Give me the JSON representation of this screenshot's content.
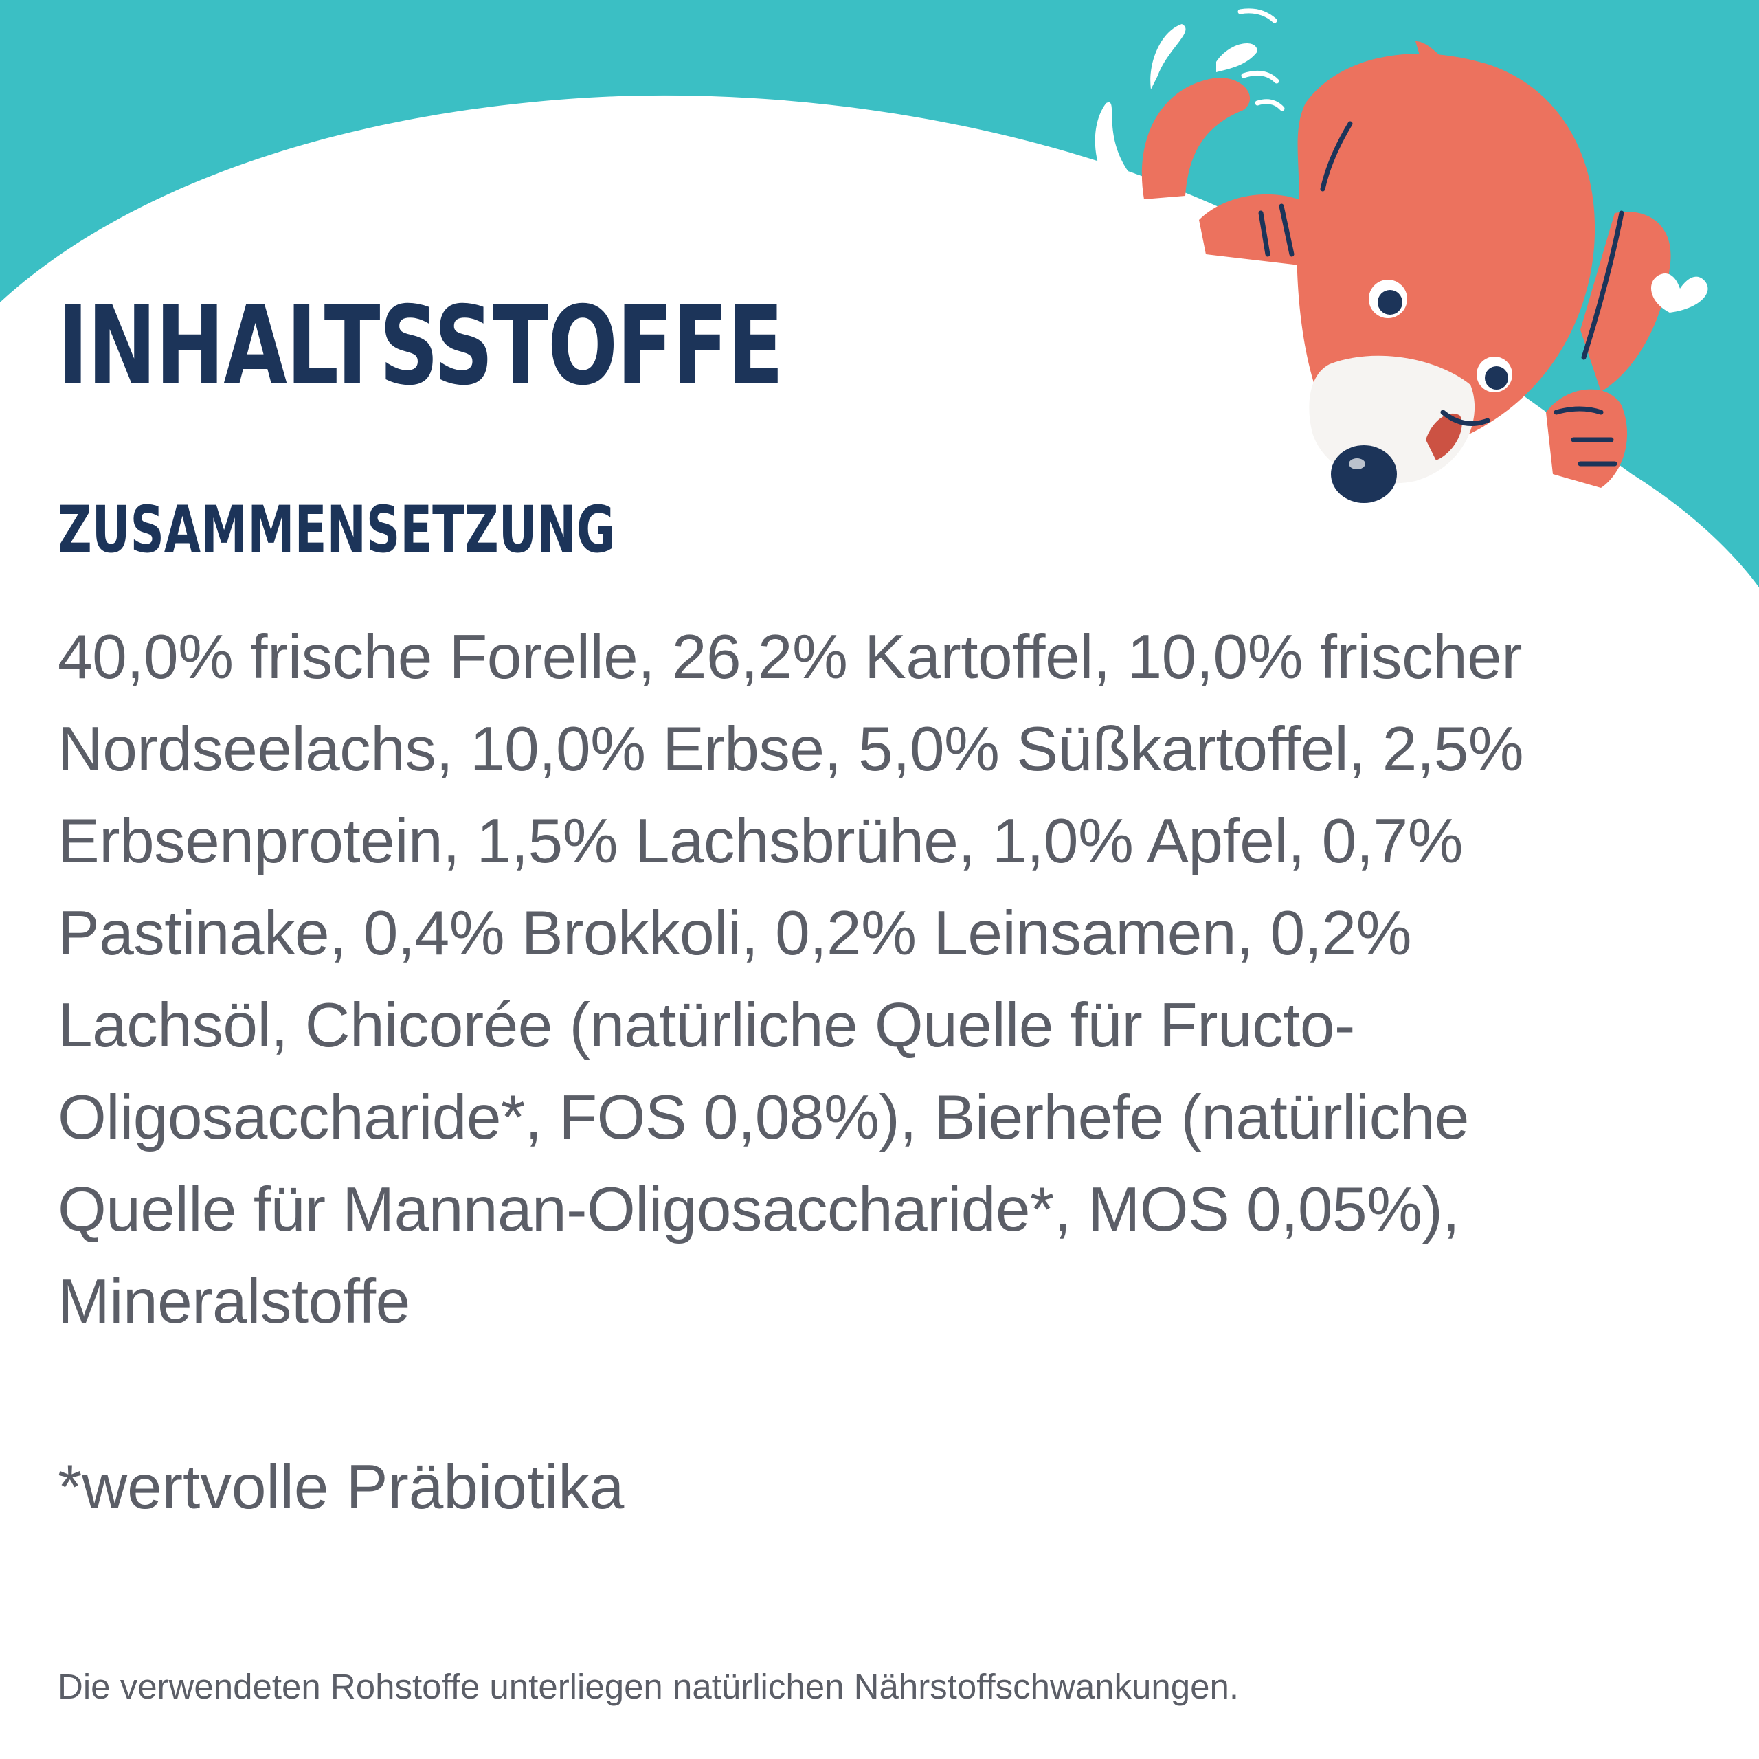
{
  "colors": {
    "teal": "#3BBFC4",
    "navy": "#1C3459",
    "body_text": "#5B5E67",
    "dog_coral": "#EC725E",
    "dog_dark": "#CC5243",
    "background": "#FFFFFF"
  },
  "heading": "INHALTSSTOFFE",
  "subheading": "ZUSAMMENSETZUNG",
  "ingredients_lines": [
    "40,0% frische Forelle, 26,2% Kartoffel, 10,0% frischer",
    "Nordseelachs, 10,0% Erbse, 5,0% Süßkartoffel, 2,5%",
    "Erbsenprotein, 1,5% Lachsbrühe, 1,0% Apfel, 0,7%",
    "Pastinake, 0,4% Brokkoli, 0,2% Leinsamen, 0,2%",
    "Lachsöl, Chicorée (natürliche Quelle für Fructo-",
    "Oligosaccharide*, FOS 0,08%), Bierhefe (natürliche",
    "Quelle für Mannan-Oligosaccharide*, MOS 0,05%),",
    "Mineralstoffe"
  ],
  "footnote": "*wertvolle Präbiotika",
  "disclaimer": "Die verwendeten Rohstoffe unterliegen natürlichen Nährstoffschwankungen.",
  "illustration": {
    "name": "dog-mascot-illustration"
  }
}
